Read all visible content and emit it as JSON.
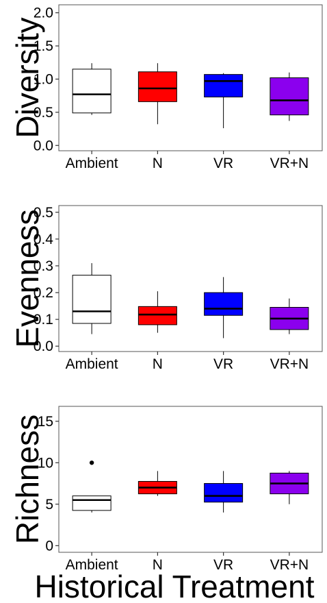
{
  "xlabel": "Historical Treatment",
  "chart_data": [
    {
      "type": "boxplot",
      "ylabel": "Diversity",
      "categories": [
        "Ambient",
        "N",
        "VR",
        "VR+N"
      ],
      "colors": [
        "#ffffff",
        "#ff0000",
        "#0000ff",
        "#8b00ee"
      ],
      "ylim": [
        -0.08,
        2.12
      ],
      "yticks": [
        0.0,
        0.5,
        1.0,
        1.5,
        2.0
      ],
      "ytick_labels": [
        "0.0",
        "0.5",
        "1.0",
        "1.5",
        "2.0"
      ],
      "boxes": [
        {
          "min": 0.46,
          "q1": 0.49,
          "median": 0.77,
          "q3": 1.15,
          "max": 1.24,
          "outliers": []
        },
        {
          "min": 0.32,
          "q1": 0.66,
          "median": 0.86,
          "q3": 1.11,
          "max": 1.24,
          "outliers": []
        },
        {
          "min": 0.26,
          "q1": 0.73,
          "median": 0.97,
          "q3": 1.07,
          "max": 1.09,
          "outliers": []
        },
        {
          "min": 0.37,
          "q1": 0.46,
          "median": 0.68,
          "q3": 1.02,
          "max": 1.1,
          "outliers": []
        }
      ]
    },
    {
      "type": "boxplot",
      "ylabel": "Evenness",
      "categories": [
        "Ambient",
        "N",
        "VR",
        "VR+N"
      ],
      "colors": [
        "#ffffff",
        "#ff0000",
        "#0000ff",
        "#8b00ee"
      ],
      "ylim": [
        -0.02,
        0.525
      ],
      "yticks": [
        0.0,
        0.1,
        0.2,
        0.3,
        0.4,
        0.5
      ],
      "ytick_labels": [
        "0.0",
        "0.1",
        "0.2",
        "0.3",
        "0.4",
        "0.5"
      ],
      "boxes": [
        {
          "min": 0.045,
          "q1": 0.085,
          "median": 0.13,
          "q3": 0.265,
          "max": 0.31,
          "outliers": []
        },
        {
          "min": 0.05,
          "q1": 0.08,
          "median": 0.118,
          "q3": 0.148,
          "max": 0.205,
          "outliers": []
        },
        {
          "min": 0.03,
          "q1": 0.115,
          "median": 0.14,
          "q3": 0.2,
          "max": 0.258,
          "outliers": []
        },
        {
          "min": 0.045,
          "q1": 0.062,
          "median": 0.103,
          "q3": 0.145,
          "max": 0.178,
          "outliers": []
        }
      ]
    },
    {
      "type": "boxplot",
      "ylabel": "Richness",
      "categories": [
        "Ambient",
        "N",
        "VR",
        "VR+N"
      ],
      "colors": [
        "#ffffff",
        "#ff0000",
        "#0000ff",
        "#8b00ee"
      ],
      "ylim": [
        -0.8,
        16.8
      ],
      "yticks": [
        0,
        5,
        10,
        15
      ],
      "ytick_labels": [
        "0",
        "5",
        "10",
        "15"
      ],
      "boxes": [
        {
          "min": 4.0,
          "q1": 4.25,
          "median": 5.5,
          "q3": 6.0,
          "max": 6.0,
          "outliers": [
            10
          ]
        },
        {
          "min": 6.0,
          "q1": 6.25,
          "median": 7.0,
          "q3": 7.75,
          "max": 9.0,
          "outliers": []
        },
        {
          "min": 4.0,
          "q1": 5.25,
          "median": 6.0,
          "q3": 7.5,
          "max": 9.0,
          "outliers": []
        },
        {
          "min": 5.0,
          "q1": 6.25,
          "median": 7.5,
          "q3": 8.75,
          "max": 9.0,
          "outliers": []
        }
      ]
    }
  ]
}
